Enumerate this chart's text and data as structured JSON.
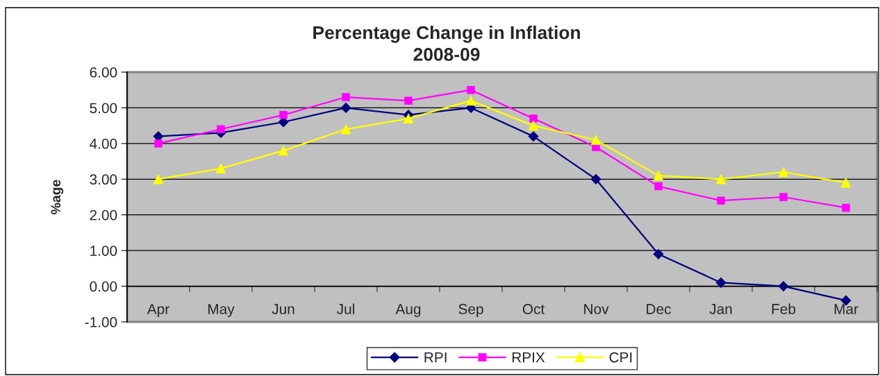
{
  "chart_data": {
    "type": "line",
    "title": "Percentage Change in Inflation\n2008-09",
    "ylabel": "%age",
    "categories": [
      "Apr",
      "May",
      "Jun",
      "Jul",
      "Aug",
      "Sep",
      "Oct",
      "Nov",
      "Dec",
      "Jan",
      "Feb",
      "Mar"
    ],
    "series": [
      {
        "name": "RPI",
        "color": "#000080",
        "marker": "diamond",
        "values": [
          4.2,
          4.3,
          4.6,
          5.0,
          4.8,
          5.0,
          4.2,
          3.0,
          0.9,
          0.1,
          0.0,
          -0.4
        ]
      },
      {
        "name": "RPIX",
        "color": "#ff00ff",
        "marker": "square",
        "values": [
          4.0,
          4.4,
          4.8,
          5.3,
          5.2,
          5.5,
          4.7,
          3.9,
          2.8,
          2.4,
          2.5,
          2.2
        ]
      },
      {
        "name": "CPI",
        "color": "#ffff00",
        "marker": "triangle",
        "values": [
          3.0,
          3.3,
          3.8,
          4.4,
          4.7,
          5.2,
          4.5,
          4.1,
          3.1,
          3.0,
          3.2,
          2.9
        ]
      }
    ],
    "ylim": [
      -1,
      6
    ],
    "yticks": [
      {
        "value": -1,
        "label": "-1.00"
      },
      {
        "value": 0,
        "label": "0.00"
      },
      {
        "value": 1,
        "label": "1.00"
      },
      {
        "value": 2,
        "label": "2.00"
      },
      {
        "value": 3,
        "label": "3.00"
      },
      {
        "value": 4,
        "label": "4.00"
      },
      {
        "value": 5,
        "label": "5.00"
      },
      {
        "value": 6,
        "label": "6.00"
      }
    ],
    "grid": "y",
    "legend": "bottom"
  }
}
